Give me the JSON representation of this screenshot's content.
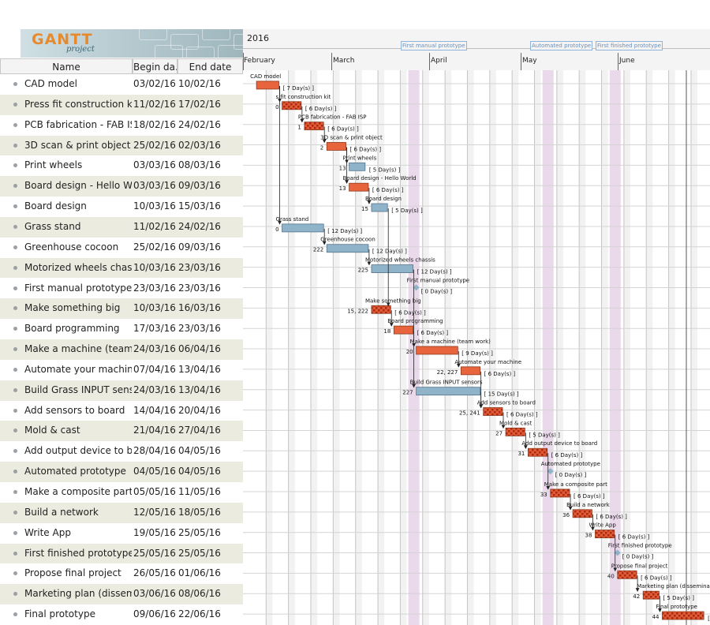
{
  "logo": {
    "title": "GANTT",
    "subtitle": "project"
  },
  "columns": {
    "name": "Name",
    "begin": "Begin da...",
    "end": "End date"
  },
  "timeline": {
    "year": "2016",
    "months": [
      "February",
      "March",
      "April",
      "May",
      "June"
    ],
    "milestones": [
      "First manual prototype",
      "Automated prototype",
      "First finished prototype"
    ]
  },
  "tasks": [
    {
      "name": "CAD model",
      "begin": "03/02/16",
      "end": "10/02/16",
      "label": "CAD model",
      "dep": "",
      "dur": "[ 7 Day(s) ]",
      "type": "done"
    },
    {
      "name": "Press fit construction kit",
      "begin": "11/02/16",
      "end": "17/02/16",
      "label": "s fit construction kit",
      "dep": "0",
      "dur": "[ 6 Day(s) ]",
      "type": "hatch"
    },
    {
      "name": "PCB fabrication - FAB ISP",
      "begin": "18/02/16",
      "end": "24/02/16",
      "label": "PCB fabrication - FAB ISP",
      "dep": "1",
      "dur": "[ 6 Day(s) ]",
      "type": "hatch"
    },
    {
      "name": "3D scan & print object",
      "begin": "25/02/16",
      "end": "02/03/16",
      "label": "3D scan & print object",
      "dep": "2",
      "dur": "[ 6 Day(s) ]",
      "type": "done"
    },
    {
      "name": "Print wheels",
      "begin": "03/03/16",
      "end": "08/03/16",
      "label": "Print wheels",
      "dep": "13",
      "dur": "[ 5 Day(s) ]",
      "type": "blue"
    },
    {
      "name": "Board design - Hello Wo...",
      "begin": "03/03/16",
      "end": "09/03/16",
      "label": "Board design - Hello World",
      "dep": "13",
      "dur": "[ 6 Day(s) ]",
      "type": "done"
    },
    {
      "name": "Board design",
      "begin": "10/03/16",
      "end": "15/03/16",
      "label": "Board design",
      "dep": "15",
      "dur": "[ 5 Day(s) ]",
      "type": "blue"
    },
    {
      "name": "Grass stand",
      "begin": "11/02/16",
      "end": "24/02/16",
      "label": "Grass stand",
      "dep": "0",
      "dur": "[ 12 Day(s) ]",
      "type": "blue"
    },
    {
      "name": "Greenhouse cocoon",
      "begin": "25/02/16",
      "end": "09/03/16",
      "label": "Greenhouse cocoon",
      "dep": "222",
      "dur": "[ 12 Day(s) ]",
      "type": "blue"
    },
    {
      "name": "Motorized wheels chassis",
      "begin": "10/03/16",
      "end": "23/03/16",
      "label": "Motorized wheels chassis",
      "dep": "225",
      "dur": "[ 12 Day(s) ]",
      "type": "blue"
    },
    {
      "name": "First manual prototype",
      "begin": "23/03/16",
      "end": "23/03/16",
      "label": "First manual prototype",
      "dep": "",
      "dur": "[ 0 Day(s) ]",
      "type": "ms"
    },
    {
      "name": "Make something big",
      "begin": "10/03/16",
      "end": "16/03/16",
      "label": "Make something big",
      "dep": "15, 222",
      "dur": "[ 6 Day(s) ]",
      "type": "hatch"
    },
    {
      "name": "Board programming",
      "begin": "17/03/16",
      "end": "23/03/16",
      "label": "Board programming",
      "dep": "18",
      "dur": "[ 6 Day(s) ]",
      "type": "done"
    },
    {
      "name": "Make a machine (team ...",
      "begin": "24/03/16",
      "end": "06/04/16",
      "label": "Make a machine (team work)",
      "dep": "20",
      "dur": "[ 9 Day(s) ]",
      "type": "done"
    },
    {
      "name": "Automate your machine",
      "begin": "07/04/16",
      "end": "13/04/16",
      "label": "Automate your machine",
      "dep": "22, 227",
      "dur": "[ 6 Day(s) ]",
      "type": "done"
    },
    {
      "name": "Build Grass INPUT sensors",
      "begin": "24/03/16",
      "end": "13/04/16",
      "label": "Build Grass INPUT sensors",
      "dep": "227",
      "dur": "[ 15 Day(s) ]",
      "type": "blue"
    },
    {
      "name": "Add sensors to board",
      "begin": "14/04/16",
      "end": "20/04/16",
      "label": "Add sensors to board",
      "dep": "25, 241",
      "dur": "[ 6 Day(s) ]",
      "type": "hatch"
    },
    {
      "name": "Mold & cast",
      "begin": "21/04/16",
      "end": "27/04/16",
      "label": "Mold & cast",
      "dep": "27",
      "dur": "[ 5 Day(s) ]",
      "type": "hatch"
    },
    {
      "name": "Add output device to bo...",
      "begin": "28/04/16",
      "end": "04/05/16",
      "label": "Add output device to board",
      "dep": "31",
      "dur": "[ 6 Day(s) ]",
      "type": "hatch"
    },
    {
      "name": "Automated prototype",
      "begin": "04/05/16",
      "end": "04/05/16",
      "label": "Automated prototype",
      "dep": "",
      "dur": "[ 0 Day(s) ]",
      "type": "ms"
    },
    {
      "name": "Make a composite part",
      "begin": "05/05/16",
      "end": "11/05/16",
      "label": "Make a composite part",
      "dep": "33",
      "dur": "[ 6 Day(s) ]",
      "type": "hatch"
    },
    {
      "name": "Build a network",
      "begin": "12/05/16",
      "end": "18/05/16",
      "label": "Build a network",
      "dep": "36",
      "dur": "[ 6 Day(s) ]",
      "type": "hatch"
    },
    {
      "name": "Write App",
      "begin": "19/05/16",
      "end": "25/05/16",
      "label": "Write App",
      "dep": "38",
      "dur": "[ 6 Day(s) ]",
      "type": "hatch"
    },
    {
      "name": "First finished prototype",
      "begin": "25/05/16",
      "end": "25/05/16",
      "label": "First finished prototype",
      "dep": "",
      "dur": "[ 0 Day(s) ]",
      "type": "ms"
    },
    {
      "name": "Propose final project",
      "begin": "26/05/16",
      "end": "01/06/16",
      "label": "Propose final project",
      "dep": "40",
      "dur": "[ 6 Day(s) ]",
      "type": "hatch"
    },
    {
      "name": "Marketing plan (dissemi...",
      "begin": "03/06/16",
      "end": "08/06/16",
      "label": "Marketing plan (dissemination)",
      "dep": "42",
      "dur": "[ 5 Day(s) ]",
      "type": "hatch"
    },
    {
      "name": "Final prototype",
      "begin": "09/06/16",
      "end": "22/06/16",
      "label": "Final prototype",
      "dep": "44",
      "dur": "[ 12 D",
      "type": "hatch"
    }
  ]
}
